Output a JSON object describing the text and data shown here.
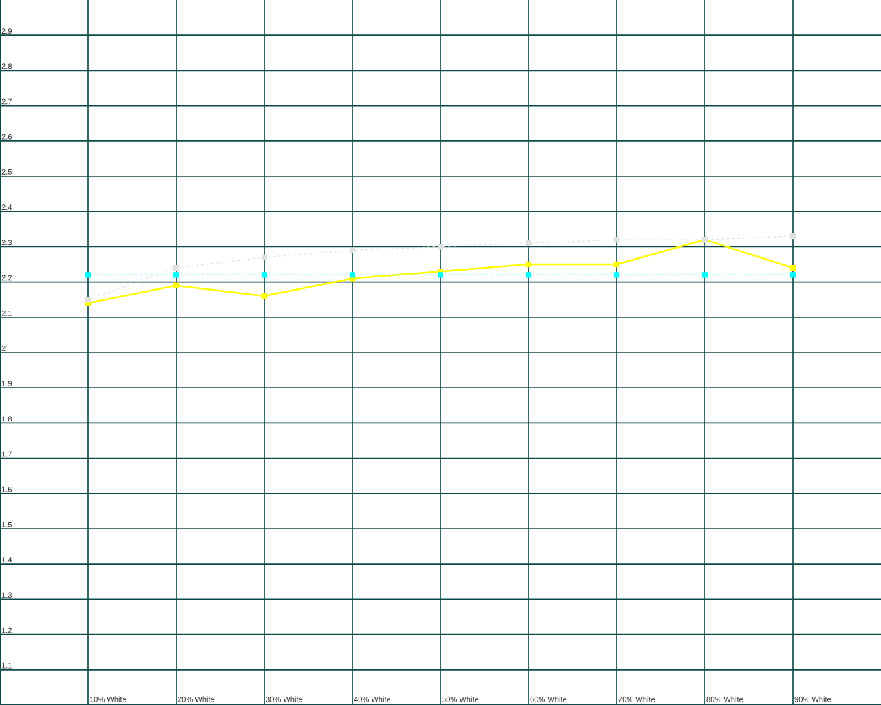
{
  "chart_data": {
    "type": "line",
    "categories": [
      "10% White",
      "20% White",
      "30% White",
      "40% White",
      "50% White",
      "60% White",
      "70% White",
      "80% White",
      "90% White"
    ],
    "series": [
      {
        "color": "#ffff00",
        "line_style": "solid",
        "values": [
          2.14,
          2.19,
          2.16,
          2.21,
          2.23,
          2.25,
          2.25,
          2.32,
          2.24
        ]
      },
      {
        "color": "#e0e0e0",
        "line_style": "dashed",
        "values": [
          2.15,
          2.24,
          2.27,
          2.29,
          2.3,
          2.31,
          2.32,
          2.32,
          2.33
        ]
      },
      {
        "color": "#00ffff",
        "line_style": "dashed",
        "values": [
          2.22,
          2.22,
          2.22,
          2.22,
          2.22,
          2.22,
          2.22,
          2.22,
          2.22
        ]
      }
    ],
    "ylim": [
      1.0,
      3.0
    ],
    "yticks": [
      1.1,
      1.2,
      1.3,
      1.4,
      1.5,
      1.6,
      1.7,
      1.8,
      1.9,
      2,
      2.1,
      2.2,
      2.3,
      2.4,
      2.5,
      2.6,
      2.7,
      2.8,
      2.9
    ],
    "grid": true,
    "marker": "square"
  }
}
